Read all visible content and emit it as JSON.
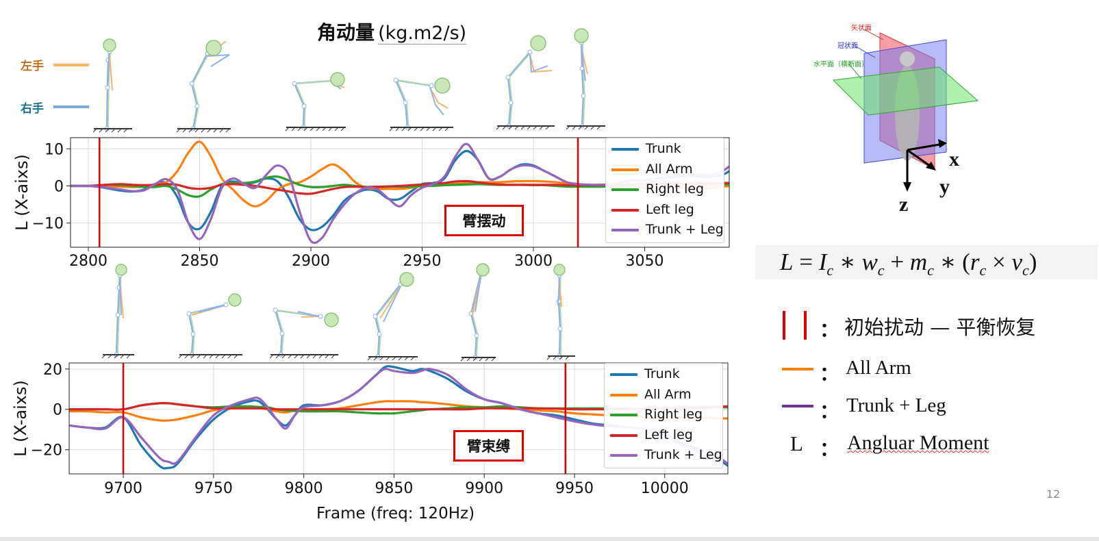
{
  "header": {
    "title_cn": "角动量",
    "title_unit": "(kg.m2/s)",
    "left_hand_label": "左手",
    "right_hand_label": "右手"
  },
  "xlabel_bottom": "Frame (freq: 120Hz)",
  "top_tag": "臂摆动",
  "bottom_tag": "臂束缚",
  "chart_data": [
    {
      "type": "line",
      "ylabel": "L (X-aixs)",
      "xlim": [
        2792,
        3088
      ],
      "ylim": [
        -16.5,
        13
      ],
      "x_ticks": [
        "2800",
        "2850",
        "2900",
        "2950",
        "3000",
        "3050"
      ],
      "x_tick_values": [
        2800,
        2850,
        2900,
        2950,
        3000,
        3050
      ],
      "y_ticks": [
        "10",
        "0",
        "−10"
      ],
      "y_tick_values": [
        10,
        0,
        -10
      ],
      "vlines": [
        2805,
        3020
      ],
      "grid": true,
      "legend_position": "top-right",
      "x": [
        2792,
        2800,
        2805,
        2810,
        2815,
        2820,
        2825,
        2830,
        2835,
        2840,
        2845,
        2850,
        2855,
        2860,
        2865,
        2870,
        2875,
        2880,
        2885,
        2890,
        2895,
        2900,
        2905,
        2910,
        2915,
        2920,
        2925,
        2930,
        2935,
        2940,
        2945,
        2950,
        2955,
        2960,
        2965,
        2970,
        2975,
        2980,
        2985,
        2990,
        2995,
        3000,
        3005,
        3010,
        3015,
        3020,
        3025,
        3030,
        3035,
        3040,
        3045,
        3050,
        3055,
        3060,
        3065,
        3070,
        3075,
        3080,
        3085,
        3088
      ],
      "series": [
        {
          "name": "Trunk",
          "color": "#1f77b4",
          "values": [
            0,
            0,
            -0.3,
            -0.8,
            -1.3,
            -1.5,
            -1,
            0.5,
            0.8,
            -3,
            -10,
            -11.5,
            -7,
            0,
            1.2,
            0.5,
            1,
            2,
            1.2,
            -3,
            -9,
            -11.8,
            -11,
            -8,
            -4,
            -2,
            -1,
            -1.5,
            -3.5,
            -3.5,
            -1.5,
            0.5,
            0.8,
            2,
            7,
            9.4,
            7,
            2,
            2.5,
            4.5,
            5.8,
            5.5,
            4,
            2.5,
            1,
            0.5,
            0.3,
            0.3,
            0.5,
            1,
            1.5,
            1.5,
            2,
            2.2,
            2.5,
            2.8,
            2.5,
            2.5,
            3,
            4
          ]
        },
        {
          "name": "All Arm",
          "color": "#ff7f0e",
          "values": [
            0,
            0,
            0,
            -0.1,
            -0.2,
            -0.3,
            -0.2,
            0.5,
            1,
            4,
            9,
            11.9,
            8,
            2,
            -1,
            -4,
            -5.5,
            -4,
            -1,
            0.5,
            1,
            2.5,
            4.5,
            5.8,
            4,
            1,
            -0.5,
            -0.8,
            -0.8,
            -0.8,
            -0.5,
            0,
            0.3,
            0.5,
            0.6,
            0.8,
            1,
            1,
            1,
            1.2,
            1.3,
            1.3,
            1.2,
            1,
            0.7,
            0.5,
            0.3,
            0.3,
            0,
            -0.3,
            -0.5,
            -0.5,
            -0.6,
            -0.6,
            -0.5,
            -0.6,
            -0.6,
            -0.5,
            -0.2,
            0
          ]
        },
        {
          "name": "Right leg",
          "color": "#2ca02c",
          "values": [
            0,
            0,
            0.2,
            0.3,
            0.2,
            0,
            -0.3,
            -0.3,
            0,
            -1,
            -2.5,
            -2.8,
            -1,
            0.5,
            0.8,
            0.8,
            1.2,
            2.2,
            2.5,
            1.5,
            0.3,
            -0.3,
            -0.3,
            0,
            0.3,
            0,
            -0.3,
            -0.3,
            -0.2,
            -0.2,
            -0.2,
            0,
            0,
            0.2,
            0.3,
            0.4,
            0.5,
            0.4,
            0.3,
            0.3,
            0.3,
            0.2,
            0.2,
            0,
            -0.2,
            -0.2,
            -0.2,
            -0.2,
            -0.1,
            0,
            0.1,
            0.2,
            0.2,
            0.3,
            0.3,
            0.3,
            0.4,
            0.4,
            0.4,
            0.5
          ]
        },
        {
          "name": "Left leg",
          "color": "#d62728",
          "values": [
            0,
            0,
            0.2,
            0.4,
            0.5,
            0.3,
            0.2,
            0.3,
            0.5,
            0.3,
            -0.5,
            -0.8,
            -0.5,
            0.3,
            0.5,
            0.3,
            0,
            -0.5,
            -1,
            -1.5,
            -2,
            -2.1,
            -1.5,
            -0.8,
            -0.3,
            -0.2,
            -0.3,
            -0.2,
            -0.1,
            0,
            0.2,
            0.4,
            0.6,
            0.8,
            1.2,
            1.3,
            1,
            0.6,
            0.4,
            0.3,
            0.3,
            0.3,
            0.3,
            0.3,
            0.2,
            0.2,
            0.2,
            0.2,
            0.2,
            0.3,
            0.4,
            0.4,
            0.5,
            0.6,
            0.6,
            0.6,
            0.7,
            0.7,
            0.8,
            0.8
          ]
        },
        {
          "name": "Trunk + Leg",
          "color": "#9467bd",
          "values": [
            0,
            0,
            -0.2,
            -0.6,
            -1,
            -1.4,
            -1.2,
            0.5,
            1.8,
            -1,
            -10,
            -14.3,
            -9,
            -0.5,
            2,
            0.5,
            -0.5,
            3,
            5.5,
            3,
            -7,
            -14.8,
            -14,
            -9,
            -5,
            -2,
            -0.5,
            -1,
            -3.5,
            -5.5,
            -2.5,
            -0.5,
            0.5,
            2.5,
            8,
            11.3,
            7,
            2,
            2.5,
            4.5,
            5.5,
            5.3,
            4,
            2.5,
            1,
            0.5,
            0.3,
            0.3,
            0.5,
            1,
            1.5,
            1.5,
            2,
            2.5,
            3,
            3,
            3,
            3,
            4,
            5.3
          ]
        }
      ]
    },
    {
      "type": "line",
      "ylabel": "L (X-aixs)",
      "xlim": [
        9670,
        10035
      ],
      "ylim": [
        -32,
        23
      ],
      "x_ticks": [
        "9700",
        "9750",
        "9800",
        "9850",
        "9900",
        "9950",
        "10000"
      ],
      "x_tick_values": [
        9700,
        9750,
        9800,
        9850,
        9900,
        9950,
        10000
      ],
      "y_ticks": [
        "20",
        "0",
        "−20"
      ],
      "y_tick_values": [
        20,
        0,
        -20
      ],
      "vlines": [
        9700,
        9945
      ],
      "grid": true,
      "legend_position": "top-right",
      "x": [
        9670,
        9680,
        9690,
        9700,
        9710,
        9720,
        9725,
        9730,
        9740,
        9750,
        9760,
        9770,
        9775,
        9780,
        9785,
        9790,
        9795,
        9800,
        9810,
        9820,
        9830,
        9840,
        9845,
        9850,
        9860,
        9865,
        9870,
        9880,
        9890,
        9900,
        9910,
        9920,
        9930,
        9940,
        9950,
        9960,
        9970,
        9980,
        9990,
        10000,
        10010,
        10020,
        10030,
        10035
      ],
      "series": [
        {
          "name": "Trunk",
          "color": "#1f77b4",
          "values": [
            -8,
            -9,
            -9,
            -4,
            -18,
            -28,
            -29,
            -27,
            -15,
            -5,
            1,
            4,
            4,
            0,
            -5,
            -8,
            -3,
            2,
            2,
            4,
            9,
            17,
            21,
            21,
            19,
            20,
            19,
            15,
            9,
            5,
            3,
            0,
            -2,
            -3,
            -5,
            -7,
            -8,
            -9,
            -10,
            -12,
            -17,
            -20,
            -25,
            -28
          ]
        },
        {
          "name": "All Arm",
          "color": "#ff7f0e",
          "values": [
            -1,
            -1,
            -1.5,
            -1.5,
            -4,
            -5.5,
            -5.5,
            -5,
            -3,
            -0.5,
            0.5,
            1,
            1,
            0,
            -1,
            -1.5,
            -0.5,
            0,
            0,
            0.5,
            2,
            3.5,
            4,
            4,
            4,
            3.5,
            3.3,
            2.5,
            1.5,
            1,
            0.5,
            0,
            -0.5,
            -1,
            -2,
            -2.5,
            -3,
            -3.5,
            -4,
            -4,
            -4,
            -4,
            -4.5,
            -4.5
          ]
        },
        {
          "name": "Right leg",
          "color": "#2ca02c",
          "values": [
            0,
            0,
            0,
            0,
            2,
            3,
            3,
            2.5,
            1.5,
            1,
            1.5,
            1.5,
            1.2,
            1,
            0,
            -0.5,
            -0.8,
            -1,
            -1,
            -1,
            -1.5,
            -2,
            -2,
            -2,
            -1,
            -0.5,
            0,
            0.5,
            1,
            1,
            1.5,
            1,
            0.5,
            0.5,
            0.5,
            0.5,
            0.5,
            0.5,
            0.5,
            0.5,
            0.5,
            0.5,
            1,
            1
          ]
        },
        {
          "name": "Left leg",
          "color": "#d62728",
          "values": [
            0,
            0,
            0,
            0,
            2,
            3,
            3,
            2.5,
            1.5,
            0.5,
            0.5,
            0.5,
            0.5,
            0.3,
            0,
            0,
            0,
            0,
            0,
            0,
            0,
            0,
            0,
            0,
            0,
            0,
            0,
            0,
            0,
            0.5,
            0.5,
            0.5,
            0.5,
            0.3,
            0,
            0,
            0,
            0,
            0.3,
            0.5,
            0.8,
            1,
            1.3,
            1.5
          ]
        },
        {
          "name": "Trunk + Leg",
          "color": "#9467bd",
          "values": [
            -8,
            -9,
            -9.5,
            -4,
            -14,
            -24,
            -26,
            -26,
            -14,
            -3,
            2,
            5,
            5.5,
            1,
            -5,
            -9.5,
            -3,
            1,
            2,
            4,
            9,
            17,
            20,
            19,
            18,
            19,
            20,
            17,
            10,
            5,
            3,
            0,
            -2,
            -4,
            -6,
            -7.5,
            -8.5,
            -9,
            -10,
            -13,
            -18,
            -21,
            -24,
            -27
          ]
        }
      ]
    }
  ],
  "formula": {
    "L": "L",
    "eq": " = ",
    "I": "I",
    "c1": "c",
    "times1": " ∗ ",
    "w": "w",
    "c2": "c",
    "plus": " + ",
    "m": "m",
    "c3": "c",
    "times2": " ∗ (",
    "r": "r",
    "c4": "c",
    "cross": " × ",
    "v": "v",
    "c5": "c",
    "close": ")"
  },
  "right_legend": {
    "item1_text": "初始扰动 — 平衡恢复",
    "item2_text": "All Arm",
    "item3_text": "Trunk + Leg",
    "item4_symbol": "L",
    "item4_text": "Angluar Moment",
    "colon": "：",
    "vline_color": "#e00000",
    "arm_color": "#ff7f0e",
    "trunkleg_color": "#7030a0"
  },
  "anatomy": {
    "sagittal": "矢状面",
    "coronal": "冠状面",
    "horizontal": "水平面（横断面）",
    "axis_x": "x",
    "axis_y": "y",
    "axis_z": "z"
  },
  "page_number": "12"
}
